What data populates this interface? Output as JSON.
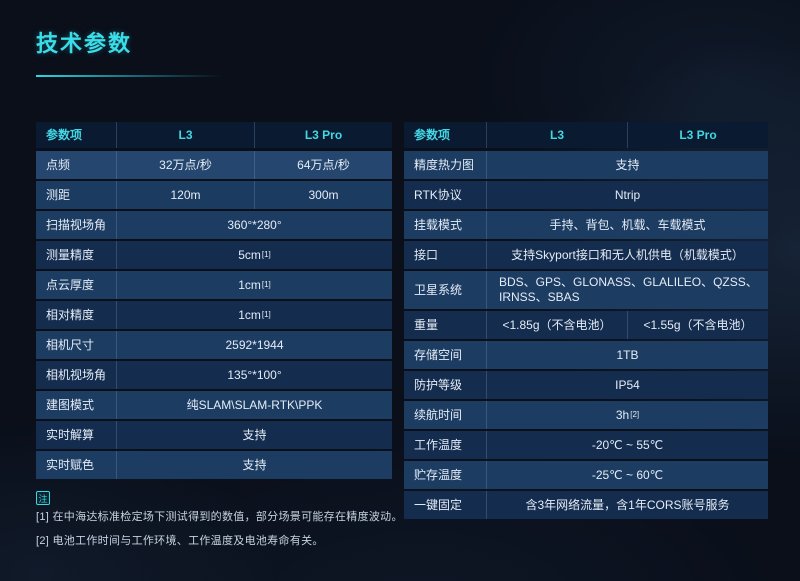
{
  "page": {
    "title": "技术参数",
    "accent_color": "#3bdde8",
    "background_color": "#0a0f1a",
    "row_color_light": "#1d3c62",
    "row_color_dark": "#142c4e",
    "header_bg_color": "#0a1b31"
  },
  "note": {
    "icon_label": "注",
    "footnotes": [
      "[1] 在中海达标准检定场下测试得到的数值，部分场景可能存在精度波动。",
      "[2] 电池工作时间与工作环境、工作温度及电池寿命有关。"
    ]
  },
  "left_table": {
    "headers": [
      "参数项",
      "L3",
      "L3 Pro"
    ],
    "rows": [
      {
        "label": "点频",
        "values": [
          "32万点/秒",
          "64万点/秒"
        ]
      },
      {
        "label": "测距",
        "values": [
          "120m",
          "300m"
        ]
      },
      {
        "label": "扫描视场角",
        "value": "360°*280°"
      },
      {
        "label": "测量精度",
        "value": "5cm",
        "sup": "[1]"
      },
      {
        "label": "点云厚度",
        "value": "1cm",
        "sup": "[1]"
      },
      {
        "label": "相对精度",
        "value": "1cm",
        "sup": "[1]"
      },
      {
        "label": "相机尺寸",
        "value": "2592*1944"
      },
      {
        "label": "相机视场角",
        "value": "135°*100°"
      },
      {
        "label": "建图模式",
        "value": "纯SLAM\\SLAM-RTK\\PPK"
      },
      {
        "label": "实时解算",
        "value": "支持"
      },
      {
        "label": "实时赋色",
        "value": "支持"
      }
    ]
  },
  "right_table": {
    "headers": [
      "参数项",
      "L3",
      "L3 Pro"
    ],
    "rows": [
      {
        "label": "精度热力图",
        "value": "支持"
      },
      {
        "label": "RTK协议",
        "value": "Ntrip"
      },
      {
        "label": "挂载模式",
        "value": "手持、背包、机载、车载模式"
      },
      {
        "label": "接口",
        "value": "支持Skyport接口和无人机供电（机载模式）"
      },
      {
        "label": "卫星系统",
        "value": "BDS、GPS、GLONASS、GLALILEO、QZSS、\nIRNSS、SBAS",
        "align": "left"
      },
      {
        "label": "重量",
        "values": [
          "<1.85g（不含电池）",
          "<1.55g（不含电池）"
        ]
      },
      {
        "label": "存储空间",
        "value": "1TB"
      },
      {
        "label": "防护等级",
        "value": "IP54"
      },
      {
        "label": "续航时间",
        "value": "3h",
        "sup": "[2]"
      },
      {
        "label": "工作温度",
        "value": "-20℃ ~ 55℃"
      },
      {
        "label": "贮存温度",
        "value": "-25℃ ~ 60℃"
      },
      {
        "label": "一键固定",
        "value": "含3年网络流量，含1年CORS账号服务"
      }
    ]
  }
}
